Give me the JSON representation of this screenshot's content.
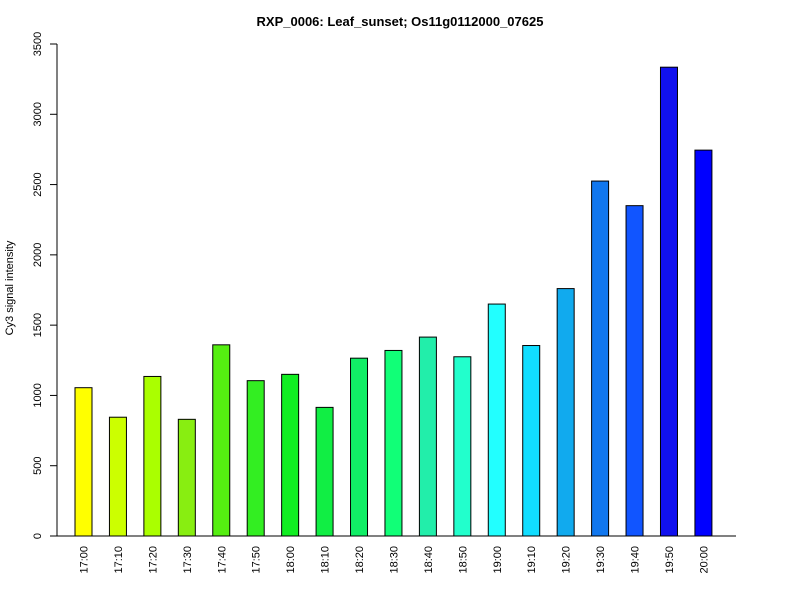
{
  "chart_data": {
    "type": "bar",
    "title": "RXP_0006: Leaf_sunset; Os11g0112000_07625",
    "xlabel": "",
    "ylabel": "Cy3 signal intensity",
    "ylim": [
      0,
      3500
    ],
    "yticks": [
      0,
      500,
      1000,
      1500,
      2000,
      2500,
      3000,
      3500
    ],
    "grid": false,
    "categories": [
      "17:00",
      "17:10",
      "17:20",
      "17:30",
      "17:40",
      "17:50",
      "18:00",
      "18:10",
      "18:20",
      "18:30",
      "18:40",
      "18:50",
      "19:00",
      "19:10",
      "19:20",
      "19:30",
      "19:40",
      "19:50",
      "20:00"
    ],
    "values": [
      1055,
      845,
      1135,
      830,
      1360,
      1105,
      1150,
      915,
      1265,
      1320,
      1415,
      1275,
      1650,
      1355,
      1760,
      2525,
      2350,
      3335,
      2745
    ],
    "colors": [
      "#ffff00",
      "#ccff00",
      "#aaff00",
      "#88ee11",
      "#55ee11",
      "#33ee22",
      "#11ee22",
      "#11ee44",
      "#11ee66",
      "#11ff77",
      "#22eeaa",
      "#22ffcc",
      "#22ffff",
      "#11ddff",
      "#11aaee",
      "#1177ee",
      "#1155ff",
      "#1111ee",
      "#0000ff"
    ]
  }
}
